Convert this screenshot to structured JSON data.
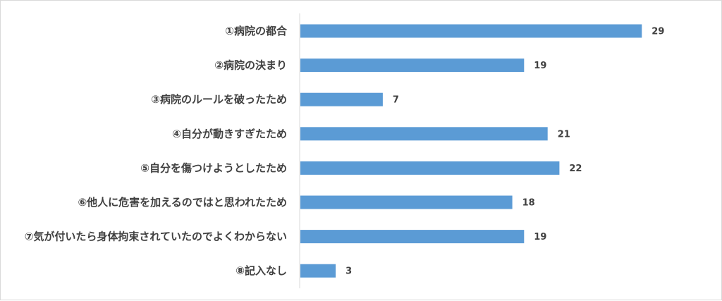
{
  "chart_data": {
    "type": "bar",
    "orientation": "horizontal",
    "categories": [
      "①病院の都合",
      "②病院の決まり",
      "③病院のルールを破ったため",
      "④自分が動きすぎたため",
      "⑤自分を傷つけようとしたため",
      "⑥他人に危害を加えるのではと思われたため",
      "⑦気が付いたら身体拘束されていたのでよくわからない",
      "⑧記入なし"
    ],
    "values": [
      29,
      19,
      7,
      21,
      22,
      18,
      19,
      3
    ],
    "xlim": [
      0,
      35
    ],
    "grid": false,
    "legend": "none",
    "bar_color": "#5b9bd5",
    "axis_color": "#d9d9d9",
    "text_color": "#404040"
  }
}
